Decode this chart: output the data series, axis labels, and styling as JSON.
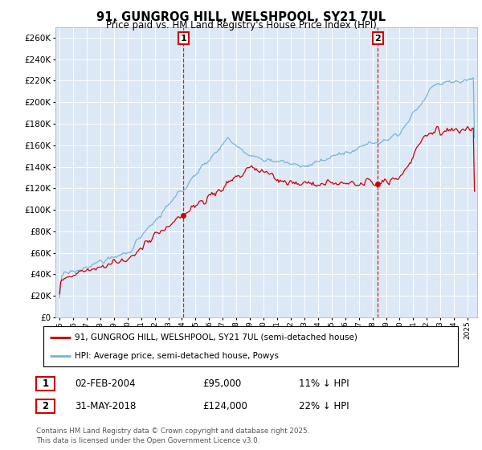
{
  "title": "91, GUNGROG HILL, WELSHPOOL, SY21 7UL",
  "subtitle": "Price paid vs. HM Land Registry's House Price Index (HPI)",
  "ylim": [
    0,
    270000
  ],
  "yticks": [
    0,
    20000,
    40000,
    60000,
    80000,
    100000,
    120000,
    140000,
    160000,
    180000,
    200000,
    220000,
    240000,
    260000
  ],
  "hpi_color": "#7ab3d8",
  "sale_color": "#cc0000",
  "legend_line1": "91, GUNGROG HILL, WELSHPOOL, SY21 7UL (semi-detached house)",
  "legend_line2": "HPI: Average price, semi-detached house, Powys",
  "table_row1": [
    "1",
    "02-FEB-2004",
    "£95,000",
    "11% ↓ HPI"
  ],
  "table_row2": [
    "2",
    "31-MAY-2018",
    "£124,000",
    "22% ↓ HPI"
  ],
  "footnote": "Contains HM Land Registry data © Crown copyright and database right 2025.\nThis data is licensed under the Open Government Licence v3.0.",
  "background_color": "#ffffff",
  "plot_bg_color": "#dce8f5",
  "sale1_year": 2004.09,
  "sale1_price": 95000,
  "sale2_year": 2018.42,
  "sale2_price": 124000,
  "xstart": 1995.0,
  "xend": 2025.5
}
